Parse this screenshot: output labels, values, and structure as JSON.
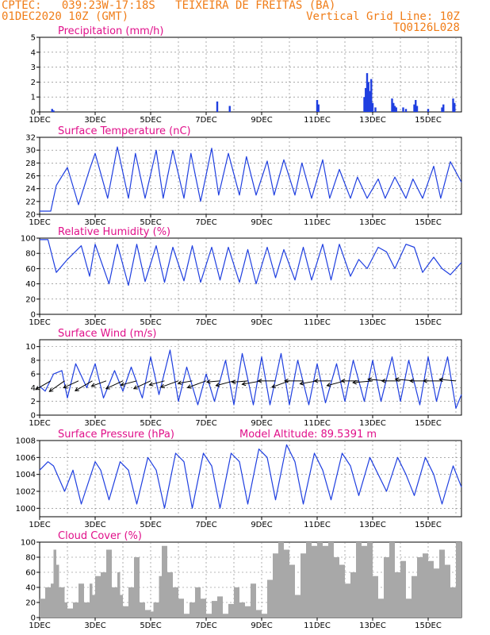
{
  "header": {
    "line1": "CPTEC:   039:23W-17:18S   TEIXEIRA DE FREITAS (BA)",
    "line2_left": "01DEC2020 10Z (GMT)",
    "line2_right": "Vertical Grid Line: 10Z",
    "line3_right": "TQ0126L028"
  },
  "x_ticks": [
    "1DEC",
    "3DEC",
    "5DEC",
    "7DEC",
    "9DEC",
    "11DEC",
    "13DEC",
    "15DEC"
  ],
  "x_tick_days": [
    1,
    3,
    5,
    7,
    9,
    11,
    13,
    15
  ],
  "x_range_days": [
    1,
    16.2
  ],
  "colors": {
    "header": "#f07d18",
    "title": "#e0108a",
    "line": "#1f3fe0",
    "bar": "#1f3fe0",
    "cloud": "#a8a8a8",
    "arrow": "#000000"
  },
  "panels": [
    {
      "id": "precip",
      "title": "Precipitation (mm/h)",
      "yticks": [
        "0",
        "1",
        "2",
        "3",
        "4",
        "5"
      ],
      "chart_data": {
        "type": "bar",
        "unit": "mm/h",
        "ylim": [
          0,
          5
        ],
        "grid": true,
        "x_days": [
          1.45,
          1.5,
          7.4,
          7.85,
          11.0,
          11.05,
          12.7,
          12.75,
          12.8,
          12.85,
          12.9,
          12.95,
          13.0,
          13.1,
          13.7,
          13.75,
          13.8,
          13.85,
          14.1,
          14.2,
          14.5,
          14.55,
          14.6,
          15.0,
          15.5,
          15.55,
          15.9,
          15.95
        ],
        "values": [
          0.2,
          0.1,
          0.7,
          0.4,
          0.8,
          0.5,
          1.0,
          1.6,
          2.6,
          2.0,
          1.4,
          2.2,
          0.6,
          0.3,
          0.9,
          0.6,
          0.4,
          0.3,
          0.3,
          0.2,
          0.5,
          0.8,
          0.4,
          0.2,
          0.3,
          0.5,
          0.9,
          0.6
        ]
      }
    },
    {
      "id": "temp",
      "title": "Surface Temperature (nC)",
      "yticks": [
        "20",
        "22",
        "24",
        "26",
        "28",
        "30",
        "32"
      ],
      "chart_data": {
        "type": "line",
        "unit": "nC",
        "ylim": [
          20,
          32
        ],
        "grid": true,
        "x_days": [
          1.0,
          1.2,
          1.4,
          1.6,
          2.0,
          2.4,
          2.8,
          3.0,
          3.45,
          3.8,
          4.2,
          4.45,
          4.8,
          5.2,
          5.45,
          5.8,
          6.2,
          6.45,
          6.8,
          7.2,
          7.45,
          7.8,
          8.2,
          8.45,
          8.8,
          9.2,
          9.45,
          9.8,
          10.2,
          10.45,
          10.8,
          11.2,
          11.45,
          11.8,
          12.2,
          12.45,
          12.8,
          13.2,
          13.45,
          13.8,
          14.2,
          14.45,
          14.8,
          15.2,
          15.45,
          15.8,
          16.2
        ],
        "values": [
          20.5,
          20.5,
          20.5,
          24.5,
          27.3,
          21.5,
          27.0,
          29.5,
          22.5,
          30.5,
          22.5,
          29.5,
          22.5,
          30.0,
          22.5,
          30.0,
          22.5,
          29.5,
          22.0,
          30.3,
          23.0,
          29.5,
          23.0,
          29.0,
          23.0,
          28.3,
          23.0,
          28.5,
          23.0,
          28.0,
          22.5,
          28.5,
          22.5,
          27.0,
          22.5,
          25.8,
          22.5,
          25.5,
          22.5,
          25.8,
          22.5,
          25.5,
          22.5,
          27.5,
          22.5,
          28.2,
          25.0
        ]
      }
    },
    {
      "id": "rh",
      "title": "Relative Humidity (%)",
      "yticks": [
        "0",
        "20",
        "40",
        "60",
        "80",
        "100"
      ],
      "chart_data": {
        "type": "line",
        "unit": "%",
        "ylim": [
          0,
          100
        ],
        "grid": true,
        "x_days": [
          1.0,
          1.3,
          1.6,
          2.0,
          2.5,
          2.8,
          3.0,
          3.5,
          3.8,
          4.2,
          4.5,
          4.8,
          5.2,
          5.5,
          5.8,
          6.2,
          6.5,
          6.8,
          7.2,
          7.5,
          7.8,
          8.2,
          8.5,
          8.8,
          9.2,
          9.5,
          9.8,
          10.2,
          10.5,
          10.8,
          11.2,
          11.5,
          11.8,
          12.2,
          12.5,
          12.8,
          13.2,
          13.5,
          13.8,
          14.2,
          14.5,
          14.8,
          15.2,
          15.5,
          15.8,
          16.2
        ],
        "values": [
          98,
          98,
          55,
          72,
          90,
          50,
          92,
          40,
          92,
          38,
          92,
          43,
          90,
          42,
          88,
          44,
          90,
          42,
          88,
          45,
          88,
          42,
          85,
          40,
          88,
          48,
          85,
          45,
          88,
          45,
          92,
          45,
          92,
          50,
          72,
          60,
          88,
          82,
          60,
          92,
          88,
          55,
          75,
          60,
          52,
          68
        ]
      }
    },
    {
      "id": "wind",
      "title": "Surface Wind (m/s)",
      "yticks": [
        "0",
        "2",
        "4",
        "6",
        "8",
        "10"
      ],
      "chart_data": {
        "type": "line",
        "unit": "m/s",
        "ylim": [
          0,
          11
        ],
        "grid": true,
        "x_days": [
          1.0,
          1.2,
          1.5,
          1.8,
          2.0,
          2.3,
          2.7,
          3.0,
          3.3,
          3.7,
          4.0,
          4.3,
          4.7,
          5.0,
          5.3,
          5.7,
          6.0,
          6.3,
          6.7,
          7.0,
          7.3,
          7.7,
          8.0,
          8.3,
          8.7,
          9.0,
          9.3,
          9.7,
          10.0,
          10.3,
          10.7,
          11.0,
          11.3,
          11.7,
          12.0,
          12.3,
          12.7,
          13.0,
          13.3,
          13.7,
          14.0,
          14.3,
          14.7,
          15.0,
          15.3,
          15.7,
          16.0,
          16.2
        ],
        "values": [
          4.2,
          3.5,
          6.0,
          6.5,
          2.5,
          7.5,
          4.0,
          7.5,
          2.5,
          6.5,
          3.5,
          7.0,
          2.5,
          8.5,
          3.0,
          9.5,
          2.0,
          7.0,
          1.5,
          6.0,
          2.0,
          8.0,
          1.5,
          9.0,
          1.5,
          8.5,
          1.5,
          9.0,
          1.5,
          8.0,
          1.5,
          7.5,
          1.8,
          7.5,
          2.0,
          8.0,
          2.0,
          8.0,
          2.0,
          8.5,
          2.0,
          8.0,
          1.5,
          8.5,
          2.0,
          8.5,
          1.0,
          3.0
        ]
      }
    },
    {
      "id": "pres",
      "title": "Surface Pressure (hPa)",
      "subtitle": "Model Altitude: 89.5391 m",
      "yticks": [
        "1000",
        "1002",
        "1004",
        "1006",
        "1008"
      ],
      "chart_data": {
        "type": "line",
        "unit": "hPa",
        "ylim": [
          999,
          1008
        ],
        "grid": true,
        "x_days": [
          1.0,
          1.3,
          1.5,
          1.9,
          2.2,
          2.5,
          3.0,
          3.2,
          3.5,
          3.9,
          4.2,
          4.5,
          4.9,
          5.2,
          5.5,
          5.9,
          6.2,
          6.5,
          6.9,
          7.2,
          7.5,
          7.9,
          8.2,
          8.5,
          8.9,
          9.2,
          9.5,
          9.9,
          10.2,
          10.5,
          10.9,
          11.2,
          11.5,
          11.9,
          12.2,
          12.5,
          12.9,
          13.2,
          13.5,
          13.9,
          14.2,
          14.5,
          14.9,
          15.2,
          15.5,
          15.9,
          16.2
        ],
        "values": [
          1004.5,
          1005.5,
          1005.0,
          1002.0,
          1004.5,
          1000.5,
          1005.5,
          1004.5,
          1001.0,
          1005.5,
          1004.5,
          1000.5,
          1006.0,
          1004.5,
          1000.0,
          1006.5,
          1005.5,
          1000.0,
          1006.5,
          1005.0,
          1000.0,
          1006.5,
          1005.5,
          1000.5,
          1007.0,
          1006.0,
          1001.0,
          1007.5,
          1005.5,
          1000.5,
          1006.5,
          1004.5,
          1001.0,
          1006.5,
          1005.0,
          1001.5,
          1006.0,
          1004.0,
          1002.0,
          1006.0,
          1004.0,
          1001.5,
          1006.0,
          1004.0,
          1000.5,
          1005.0,
          1002.5
        ]
      }
    },
    {
      "id": "cloud",
      "title": "Cloud Cover (%)",
      "yticks": [
        "0",
        "20",
        "40",
        "60",
        "80",
        "100"
      ],
      "chart_data": {
        "type": "area",
        "unit": "%",
        "ylim": [
          0,
          100
        ],
        "grid": true,
        "x_days": [
          1.0,
          1.2,
          1.4,
          1.5,
          1.6,
          1.7,
          1.9,
          2.0,
          2.2,
          2.4,
          2.6,
          2.8,
          2.9,
          3.0,
          3.2,
          3.4,
          3.6,
          3.8,
          3.9,
          4.0,
          4.2,
          4.4,
          4.6,
          4.8,
          5.0,
          5.1,
          5.3,
          5.4,
          5.6,
          5.8,
          6.0,
          6.2,
          6.4,
          6.6,
          6.8,
          7.0,
          7.2,
          7.4,
          7.6,
          7.8,
          8.0,
          8.2,
          8.4,
          8.6,
          8.8,
          9.0,
          9.2,
          9.4,
          9.6,
          9.8,
          10.0,
          10.2,
          10.4,
          10.6,
          10.8,
          11.0,
          11.2,
          11.4,
          11.6,
          11.8,
          12.0,
          12.2,
          12.4,
          12.6,
          12.8,
          13.0,
          13.2,
          13.4,
          13.6,
          13.8,
          14.0,
          14.2,
          14.4,
          14.6,
          14.8,
          15.0,
          15.2,
          15.4,
          15.6,
          15.8,
          16.0,
          16.2
        ],
        "values": [
          25,
          40,
          45,
          90,
          70,
          40,
          20,
          12,
          20,
          45,
          20,
          45,
          30,
          55,
          60,
          90,
          40,
          60,
          30,
          15,
          40,
          80,
          20,
          10,
          8,
          20,
          55,
          95,
          60,
          40,
          25,
          5,
          20,
          40,
          25,
          5,
          22,
          28,
          5,
          18,
          40,
          20,
          15,
          45,
          10,
          5,
          50,
          85,
          100,
          90,
          70,
          30,
          85,
          100,
          95,
          100,
          95,
          100,
          80,
          70,
          45,
          60,
          100,
          95,
          100,
          55,
          25,
          80,
          100,
          60,
          75,
          25,
          55,
          80,
          85,
          75,
          65,
          90,
          70,
          40,
          100,
          15
        ]
      }
    }
  ],
  "wind_vectors": {
    "x_days": [
      1.4,
      1.9,
      2.4,
      2.9,
      3.4,
      4.0,
      4.5,
      5.0,
      5.5,
      6.0,
      6.5,
      7.0,
      7.5,
      8.0,
      8.5,
      9.0,
      9.5,
      10.0,
      10.5,
      11.0,
      11.5,
      12.0,
      12.5,
      13.0,
      13.5,
      14.0,
      14.5,
      15.0,
      15.5,
      16.0
    ],
    "speed": [
      4.2,
      4.5,
      4.0,
      4.8,
      3.8,
      4.5,
      4.0,
      4.5,
      3.8,
      4.5,
      3.5,
      4.8,
      3.2,
      4.5,
      3.8,
      4.8,
      4.2,
      4.5,
      4.5,
      4.2,
      4.0,
      4.5,
      4.2,
      4.8,
      4.5,
      4.5,
      4.6,
      4.4,
      4.5,
      4.0
    ],
    "angle_deg": [
      210,
      215,
      205,
      210,
      200,
      205,
      195,
      205,
      195,
      200,
      190,
      200,
      185,
      195,
      185,
      190,
      180,
      200,
      180,
      190,
      180,
      195,
      180,
      185,
      175,
      180,
      175,
      180,
      180,
      175
    ]
  }
}
